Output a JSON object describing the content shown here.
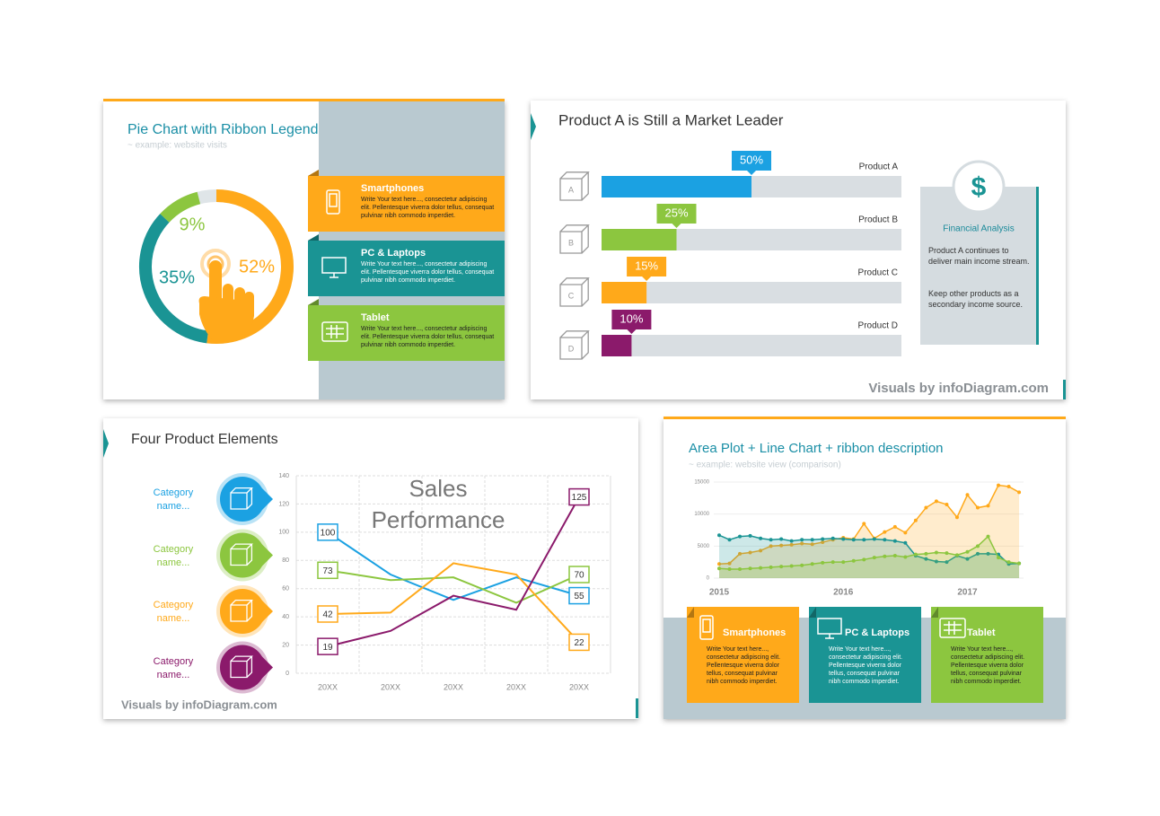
{
  "chart_data": [
    {
      "type": "pie",
      "title": "Pie Chart with Ribbon Legend",
      "subtitle": "~ example: website visits",
      "categories": [
        "Smartphones",
        "PC & Laptops",
        "Tablet"
      ],
      "values": [
        52,
        35,
        9
      ],
      "value_labels": [
        "52%",
        "35%",
        "9%"
      ],
      "colors": [
        "#ffa91a",
        "#1a9494",
        "#8cc63f"
      ],
      "descriptions": [
        "Write Your text here..., consectetur adipiscing elit. Pellentesque viverra dolor tellus, consequat pulvinar nibh commodo imperdiet.",
        "Write Your text here..., consectetur adipiscing elit. Pellentesque viverra dolor tellus, consequat pulvinar nibh commodo imperdiet.",
        "Write Your text here..., consectetur adipiscing elit. Pellentesque viverra dolor tellus, consequat pulvinar nibh commodo imperdiet."
      ]
    },
    {
      "type": "bar",
      "title": "Product A is Still a Market Leader",
      "categories": [
        "Product A",
        "Product B",
        "Product C",
        "Product D"
      ],
      "icon_labels": [
        "A",
        "B",
        "C",
        "D"
      ],
      "values": [
        50,
        25,
        15,
        10
      ],
      "value_labels": [
        "50%",
        "25%",
        "15%",
        "10%"
      ],
      "colors": [
        "#1ba1e2",
        "#8cc63f",
        "#ffa91a",
        "#8b1a6b"
      ],
      "xlim": [
        0,
        100
      ]
    },
    {
      "type": "line",
      "title": "Four Product Elements",
      "annotation": "Sales Performance",
      "categories": [
        "20XX",
        "20XX",
        "20XX",
        "20XX",
        "20XX"
      ],
      "series": [
        {
          "name": "Category name...",
          "color": "#1ba1e2",
          "values": [
            100,
            70,
            52,
            68,
            55
          ]
        },
        {
          "name": "Category name...",
          "color": "#8cc63f",
          "values": [
            73,
            66,
            68,
            50,
            70
          ]
        },
        {
          "name": "Category name...",
          "color": "#ffa91a",
          "values": [
            42,
            43,
            78,
            70,
            22
          ]
        },
        {
          "name": "Category name...",
          "color": "#8b1a6b",
          "values": [
            19,
            30,
            55,
            45,
            125
          ]
        }
      ],
      "ylim": [
        0,
        140
      ],
      "yticks": [
        0,
        20,
        40,
        60,
        80,
        100,
        120,
        140
      ],
      "grid": true
    },
    {
      "type": "area",
      "title": "Area Plot + Line Chart + ribbon description",
      "subtitle": "~ example: website view (comparison)",
      "categories": [
        "2015",
        null,
        null,
        null,
        null,
        null,
        null,
        null,
        null,
        null,
        null,
        null,
        "2016",
        null,
        null,
        null,
        null,
        null,
        null,
        null,
        null,
        null,
        null,
        null,
        "2017",
        null,
        null,
        null,
        null,
        null
      ],
      "series": [
        {
          "name": "Smartphones",
          "color": "#ffa91a",
          "values": [
            2200,
            2300,
            3800,
            4000,
            4300,
            5000,
            5100,
            5200,
            5400,
            5300,
            5600,
            6000,
            6300,
            6100,
            8500,
            6200,
            7200,
            8000,
            7100,
            9000,
            11000,
            12000,
            11500,
            9500,
            13000,
            11000,
            11300,
            14500,
            14300,
            13400
          ]
        },
        {
          "name": "PC & Laptops",
          "color": "#1a9494",
          "values": [
            6700,
            6000,
            6500,
            6600,
            6200,
            6000,
            6100,
            5800,
            6000,
            6000,
            6100,
            6200,
            6100,
            6000,
            6000,
            6100,
            6000,
            5800,
            5500,
            3500,
            3000,
            2600,
            2500,
            3500,
            3000,
            3800,
            3800,
            3700,
            2200,
            2300
          ]
        },
        {
          "name": "Tablet",
          "color": "#8cc63f",
          "values": [
            1500,
            1400,
            1400,
            1500,
            1600,
            1700,
            1800,
            1900,
            2000,
            2200,
            2400,
            2500,
            2500,
            2700,
            2900,
            3200,
            3400,
            3500,
            3300,
            3700,
            3800,
            4000,
            3900,
            3600,
            4100,
            5000,
            6500,
            3200,
            2500,
            2300
          ]
        }
      ],
      "descriptions": [
        "Write Your text here..., consectetur adipiscing elit. Pellentesque viverra dolor tellus, consequat pulvinar nibh commodo imperdiet.",
        "Write Your text here..., consectetur adipiscing elit. Pellentesque viverra dolor tellus, consequat pulvinar nibh commodo imperdiet.",
        "Write Your text here..., consectetur adipiscing elit. Pellentesque viverra dolor tellus, consequat pulvinar nibh commodo imperdiet."
      ],
      "ylim": [
        0,
        15000
      ],
      "yticks": [
        0,
        5000,
        10000,
        15000
      ]
    }
  ],
  "panel": {
    "symbol": "$",
    "title": "Financial Analysis",
    "paragraphs": [
      "Product A continues to deliver main income stream.",
      "Keep other products as a secondary income source."
    ]
  },
  "footers": [
    "Visuals by infoDiagram.com",
    "Visuals by infoDiagram.com"
  ]
}
